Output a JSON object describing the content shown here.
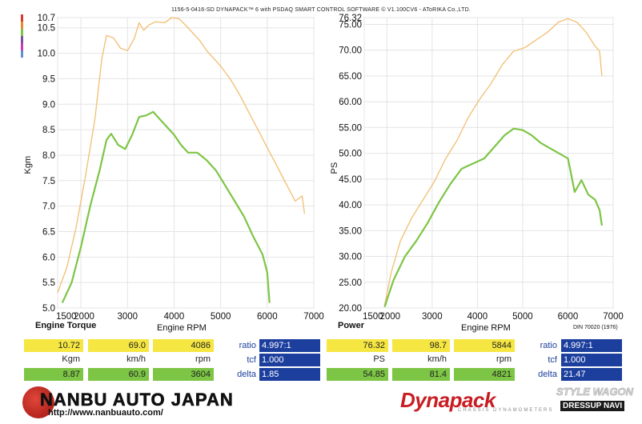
{
  "header": "1156-5-0416-SD DYNAPACK™ 6 with PSDAQ SMART CONTROL SOFTWARE © V1.100CV6 - AToRIKA Co.,LTD.",
  "palette": {
    "torque": "#7dc545",
    "power": "#7dc545",
    "torque_ref": "#f2c27a",
    "blue": "#1c3f9e",
    "yellow": "#f5e642"
  },
  "chart_data": [
    {
      "type": "line",
      "title": "Engine Torque",
      "xlabel": "Engine RPM",
      "ylabel": "Kgm",
      "xlim": [
        1500,
        7000
      ],
      "ylim": [
        5.0,
        10.7
      ],
      "x_ticks": [
        "1500",
        "2000",
        "3000",
        "4000",
        "5000",
        "6000",
        "7000"
      ],
      "y_ticks": [
        "5.0",
        "5.5",
        "6.0",
        "6.5",
        "7.0",
        "7.5",
        "8.0",
        "8.5",
        "9.0",
        "9.5",
        "10.0",
        "10.5",
        "10.7"
      ],
      "series": [
        {
          "color": "#f2c27a",
          "x": [
            1500,
            1700,
            1900,
            2100,
            2300,
            2450,
            2550,
            2700,
            2850,
            3000,
            3150,
            3250,
            3350,
            3450,
            3600,
            3800,
            3950,
            4100,
            4250,
            4400,
            4550,
            4700,
            4850,
            5000,
            5200,
            5400,
            5600,
            5800,
            6000,
            6200,
            6400,
            6600,
            6750,
            6800
          ],
          "y": [
            5.3,
            5.8,
            6.6,
            7.6,
            8.7,
            9.9,
            10.35,
            10.3,
            10.1,
            10.05,
            10.3,
            10.6,
            10.45,
            10.55,
            10.62,
            10.6,
            10.7,
            10.68,
            10.55,
            10.4,
            10.25,
            10.05,
            9.9,
            9.75,
            9.5,
            9.2,
            8.85,
            8.5,
            8.15,
            7.8,
            7.45,
            7.1,
            7.2,
            6.85
          ]
        },
        {
          "color": "#7dc545",
          "x": [
            1600,
            1800,
            2000,
            2200,
            2400,
            2550,
            2650,
            2800,
            2950,
            3100,
            3250,
            3400,
            3550,
            3700,
            3850,
            4000,
            4150,
            4300,
            4500,
            4700,
            4900,
            5100,
            5300,
            5500,
            5700,
            5900,
            6000,
            6050
          ],
          "y": [
            5.1,
            5.5,
            6.2,
            7.0,
            7.7,
            8.3,
            8.42,
            8.2,
            8.12,
            8.4,
            8.75,
            8.78,
            8.85,
            8.7,
            8.55,
            8.4,
            8.2,
            8.05,
            8.05,
            7.9,
            7.7,
            7.4,
            7.1,
            6.8,
            6.4,
            6.05,
            5.7,
            5.1
          ]
        }
      ]
    },
    {
      "type": "line",
      "title": "Power",
      "xlabel": "Engine RPM",
      "ylabel": "PS",
      "xlim": [
        1500,
        7000
      ],
      "ylim": [
        20.0,
        76.32
      ],
      "x_ticks": [
        "1500",
        "2000",
        "3000",
        "4000",
        "5000",
        "6000",
        "7000"
      ],
      "y_ticks": [
        "20.00",
        "25.00",
        "30.00",
        "35.00",
        "40.00",
        "45.00",
        "50.00",
        "55.00",
        "60.00",
        "65.00",
        "70.00",
        "75.00",
        "76.32"
      ],
      "series": [
        {
          "color": "#f2c27a",
          "x": [
            1950,
            2100,
            2300,
            2550,
            2800,
            3050,
            3300,
            3550,
            3800,
            4050,
            4300,
            4550,
            4800,
            5050,
            5300,
            5550,
            5800,
            6000,
            6200,
            6400,
            6600,
            6700,
            6750
          ],
          "y": [
            20.5,
            27,
            33,
            37.5,
            41,
            44.5,
            49,
            52.5,
            57,
            60.5,
            63.5,
            67.2,
            69.8,
            70.5,
            72,
            73.5,
            75.5,
            76.1,
            75.4,
            73.5,
            70.8,
            69.8,
            65
          ]
        },
        {
          "color": "#7dc545",
          "x": [
            1950,
            2150,
            2400,
            2650,
            2900,
            3150,
            3400,
            3650,
            3900,
            4150,
            4400,
            4600,
            4800,
            5000,
            5200,
            5400,
            5600,
            5800,
            6000,
            6150,
            6300,
            6450,
            6600,
            6700,
            6750
          ],
          "y": [
            20.2,
            25.5,
            30,
            33,
            36.5,
            40.5,
            44,
            47,
            48,
            49,
            51.5,
            53.5,
            54.8,
            54.5,
            53.5,
            52,
            51,
            50,
            49,
            42.5,
            44.8,
            42,
            41,
            39,
            36
          ]
        }
      ]
    }
  ],
  "torque_table": {
    "row1": [
      "10.72",
      "69.0",
      "4086"
    ],
    "units": [
      "Kgm",
      "km/h",
      "rpm"
    ],
    "row3": [
      "8.87",
      "60.9",
      "3604"
    ],
    "labels": [
      "ratio",
      "tcf",
      "delta"
    ],
    "values": [
      "4.997:1",
      "1.000",
      "1.85"
    ]
  },
  "power_table": {
    "row1": [
      "76.32",
      "98.7",
      "5844"
    ],
    "units": [
      "PS",
      "km/h",
      "rpm"
    ],
    "row3": [
      "54.85",
      "81.4",
      "4821"
    ],
    "labels": [
      "ratio",
      "tcf",
      "delta"
    ],
    "values": [
      "4.997:1",
      "1.000",
      "21.47"
    ]
  },
  "din": "DIN 70020 (1976)",
  "logos": {
    "nanbu": "NANBU AUTO JAPAN",
    "nanbu_url": "http://www.nanbuauto.com/",
    "dynapack": "Dynapack",
    "dynapack_sub": "CHASSIS DYNAMOMETERS",
    "style_wagon": "STYLE WAGON",
    "dress_navi": "DRESSUP NAVI"
  }
}
